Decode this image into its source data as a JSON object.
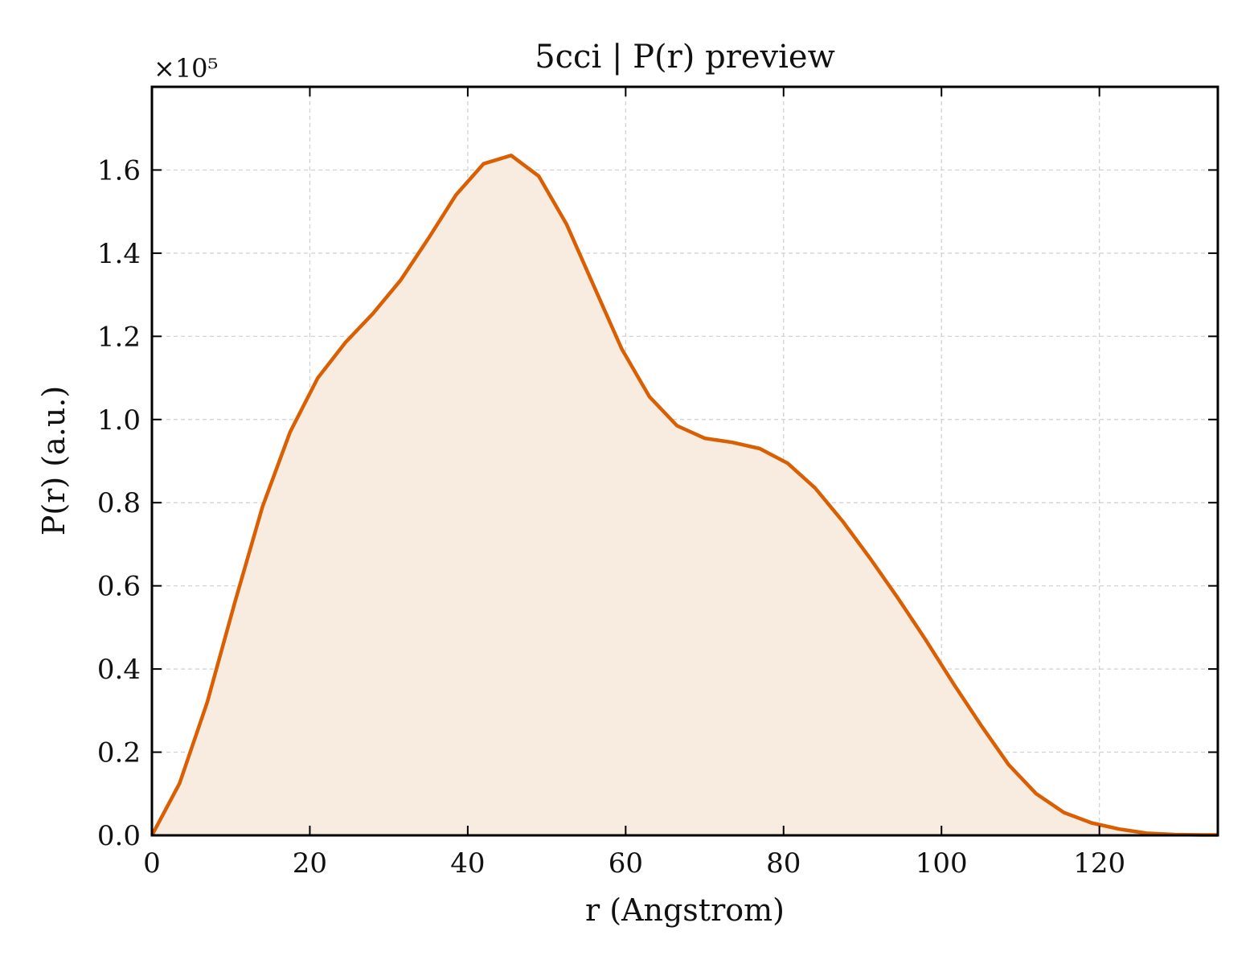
{
  "chart_data": {
    "type": "area",
    "title": "5cci | P(r) preview",
    "xlabel": "r (Angstrom)",
    "ylabel": "P(r) (a.u.)",
    "y_offset_label": "×10⁵",
    "xlim": [
      0,
      135
    ],
    "ylim": [
      0,
      180000
    ],
    "xticks": [
      0,
      20,
      40,
      60,
      80,
      100,
      120
    ],
    "xtick_labels": [
      "0",
      "20",
      "40",
      "60",
      "80",
      "100",
      "120"
    ],
    "yticks": [
      0,
      20000,
      40000,
      60000,
      80000,
      100000,
      120000,
      140000,
      160000
    ],
    "ytick_labels": [
      "0.0",
      "0.2",
      "0.4",
      "0.6",
      "0.8",
      "1.0",
      "1.2",
      "1.4",
      "1.6"
    ],
    "grid": true,
    "line_color": "#d95f02",
    "fill_color": "#f8ebe0",
    "series": [
      {
        "x": [
          0,
          3.5,
          7,
          10.5,
          14,
          17.5,
          21,
          24.5,
          28,
          31.5,
          35,
          38.5,
          42,
          45.5,
          49,
          52.5,
          56,
          59.5,
          63,
          66.5,
          70,
          73.5,
          77,
          80.5,
          84,
          87.5,
          91,
          94.5,
          98,
          101.5,
          105,
          108.5,
          112,
          115.5,
          119,
          122.5,
          126,
          129.5,
          133,
          135
        ],
        "y": [
          0,
          12500,
          32000,
          56000,
          79000,
          97000,
          110000,
          118500,
          125500,
          133500,
          143500,
          154000,
          161500,
          163500,
          158500,
          147000,
          132000,
          117000,
          105500,
          98500,
          95500,
          94500,
          93000,
          89500,
          83500,
          75500,
          66500,
          57000,
          47000,
          36500,
          26500,
          17000,
          10000,
          5500,
          3000,
          1500,
          500,
          200,
          100,
          100
        ]
      }
    ]
  }
}
